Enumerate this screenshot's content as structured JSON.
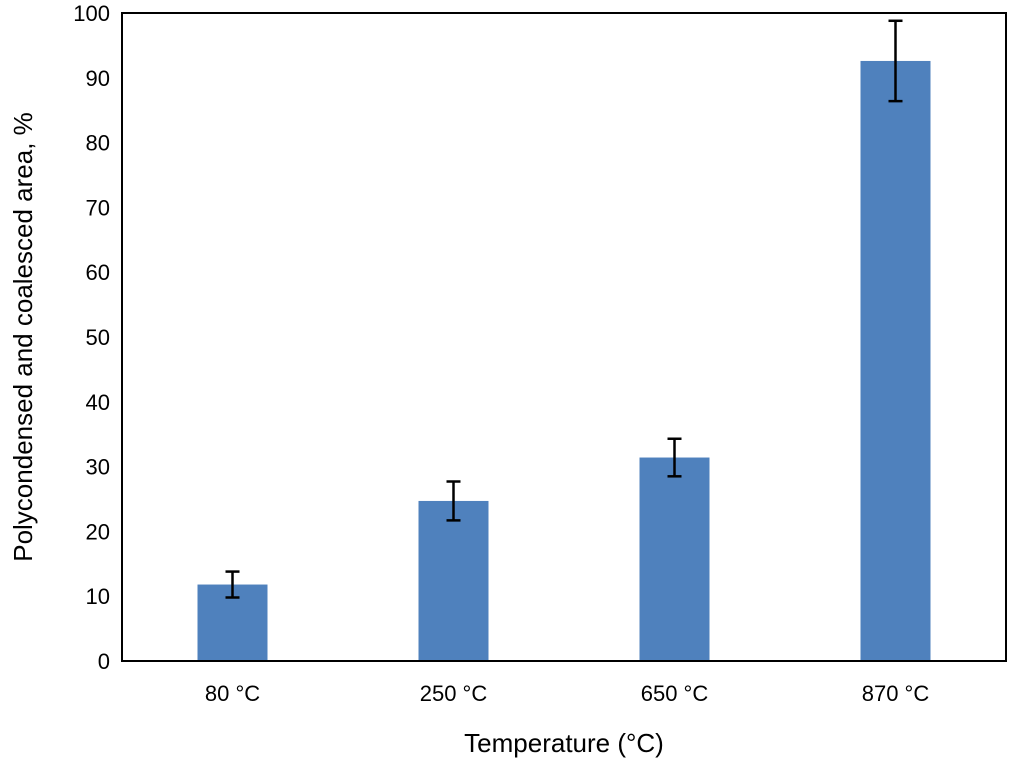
{
  "chart_data": {
    "type": "bar",
    "title": "",
    "xlabel": "Temperature (°C)",
    "ylabel": "Polycondensed and coalesced area, %",
    "categories": [
      "80 °C",
      "250 °C",
      "650 °C",
      "870 °C"
    ],
    "values": [
      11.8,
      24.7,
      31.4,
      92.6
    ],
    "error": [
      2.0,
      3.0,
      2.9,
      6.2
    ],
    "ylim": [
      0,
      100
    ],
    "yticks": [
      "0",
      "10",
      "20",
      "30",
      "40",
      "50",
      "60",
      "70",
      "80",
      "90",
      "100"
    ],
    "grid": false,
    "legend": "none",
    "colors": {
      "bar": "#4f81bd",
      "error_bar": "#000000",
      "axis": "#000000",
      "background": "#ffffff"
    }
  }
}
